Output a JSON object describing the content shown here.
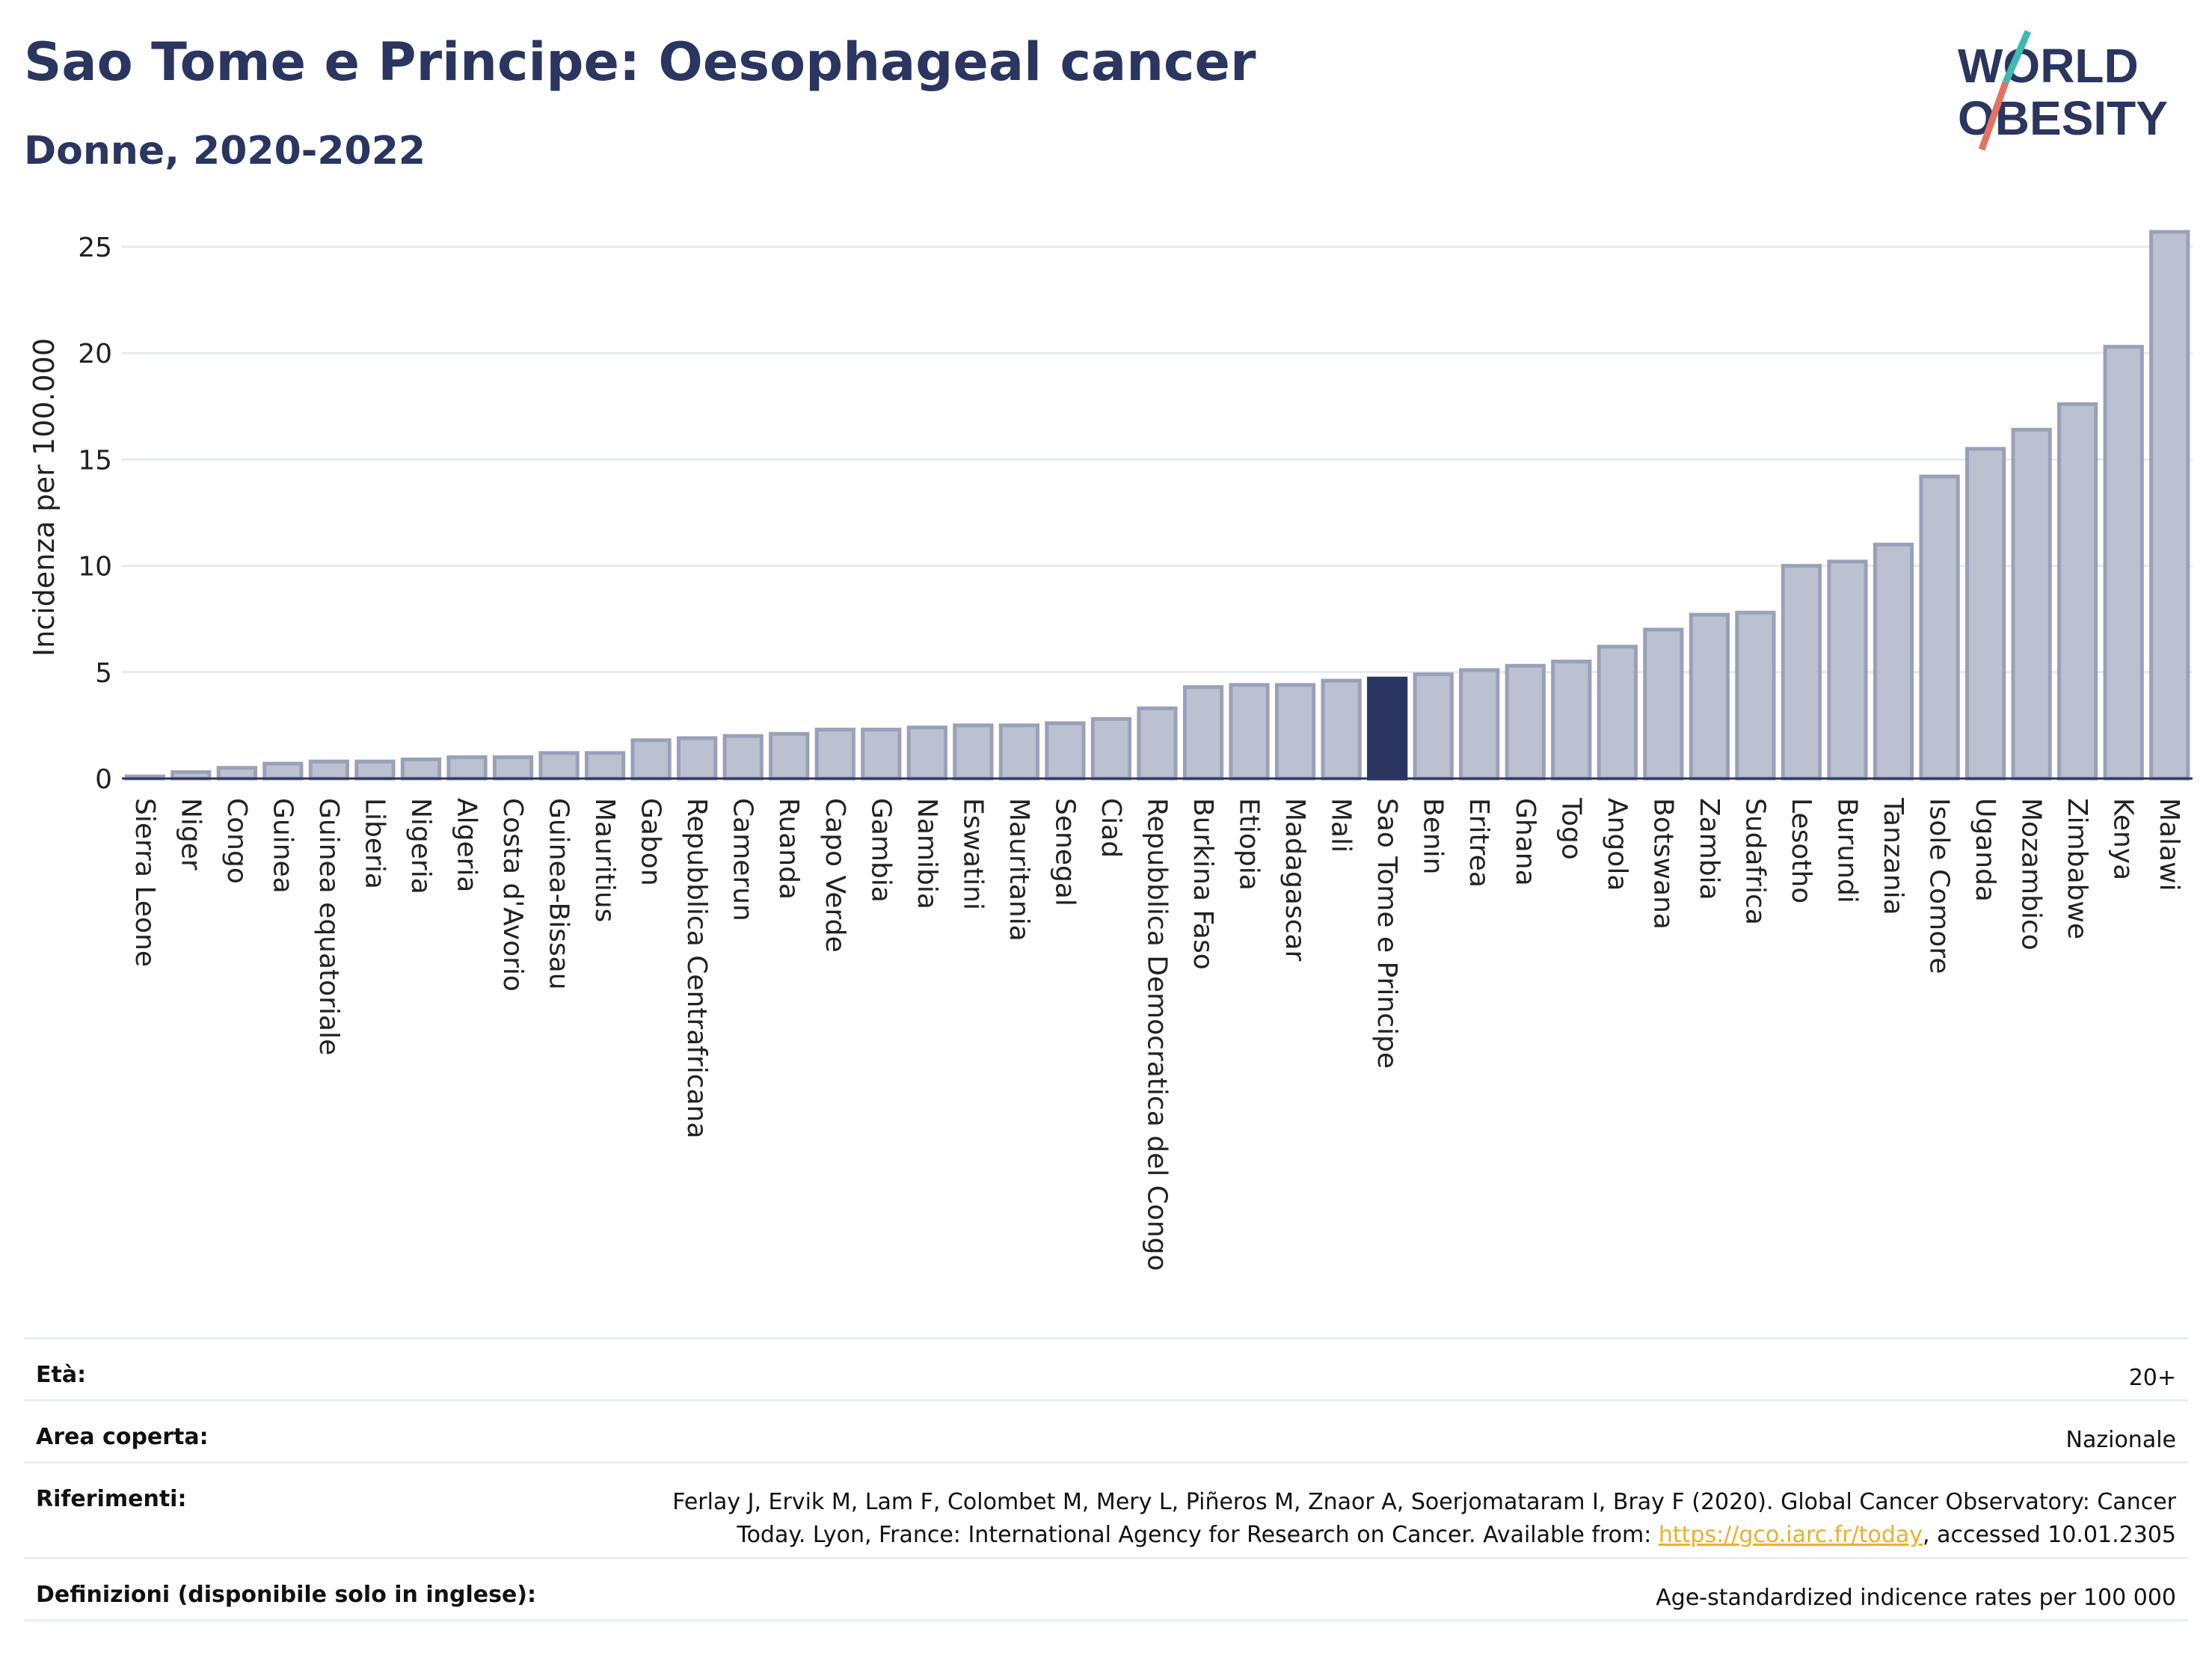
{
  "title": "Sao Tome e Principe: Oesophageal cancer",
  "subtitle": "Donne, 2020-2022",
  "logo": {
    "line1": "WORLD",
    "line2": "OBESITY"
  },
  "colors": {
    "bar": "#bcc1d1",
    "bar_stroke": "#9aa0b8",
    "highlight": "#2a3560",
    "title": "#2a3560",
    "link": "#e8b12a"
  },
  "chart_data": {
    "type": "bar",
    "ylabel": "Incidenza per 100.000",
    "ylim": [
      0,
      26.5
    ],
    "yticks": [
      0,
      5,
      10,
      15,
      20,
      25
    ],
    "highlight": "Sao Tome e Principe",
    "categories": [
      "Sierra Leone",
      "Niger",
      "Congo",
      "Guinea",
      "Guinea equatoriale",
      "Liberia",
      "Nigeria",
      "Algeria",
      "Costa d'Avorio",
      "Guinea-Bissau",
      "Mauritius",
      "Gabon",
      "Repubblica Centrafricana",
      "Camerun",
      "Ruanda",
      "Capo Verde",
      "Gambia",
      "Namibia",
      "Eswatini",
      "Mauritania",
      "Senegal",
      "Ciad",
      "Repubblica Democratica del Congo",
      "Burkina Faso",
      "Etiopia",
      "Madagascar",
      "Mali",
      "Sao Tome e Principe",
      "Benin",
      "Eritrea",
      "Ghana",
      "Togo",
      "Angola",
      "Botswana",
      "Zambia",
      "Sudafrica",
      "Lesotho",
      "Burundi",
      "Tanzania",
      "Isole Comore",
      "Uganda",
      "Mozambico",
      "Zimbabwe",
      "Kenya",
      "Malawi"
    ],
    "values": [
      0.1,
      0.3,
      0.5,
      0.7,
      0.8,
      0.8,
      0.9,
      1.0,
      1.0,
      1.2,
      1.2,
      1.8,
      1.9,
      2.0,
      2.1,
      2.3,
      2.3,
      2.4,
      2.5,
      2.5,
      2.6,
      2.8,
      3.3,
      4.3,
      4.4,
      4.4,
      4.6,
      4.7,
      4.9,
      5.1,
      5.3,
      5.5,
      6.2,
      7.0,
      7.7,
      7.8,
      10.0,
      10.2,
      11.0,
      14.2,
      15.5,
      16.4,
      17.6,
      20.3,
      25.7
    ]
  },
  "meta": {
    "age_label": "Età:",
    "age_value": "20+",
    "area_label": "Area coperta:",
    "area_value": "Nazionale",
    "ref_label": "Riferimenti:",
    "ref_line1": "Ferlay J, Ervik M, Lam F, Colombet M, Mery L, Piñeros M, Znaor A, Soerjomataram I, Bray F (2020). Global Cancer Observatory: Cancer",
    "ref_line2_pre": "Today. Lyon, France: International Agency for Research on Cancer. Available from: ",
    "ref_link": "https://gco.iarc.fr/today",
    "ref_line2_post": ", accessed 10.01.2305",
    "def_label": "Definizioni (disponibile solo in inglese):",
    "def_value": "Age-standardized indicence rates per 100 000"
  }
}
